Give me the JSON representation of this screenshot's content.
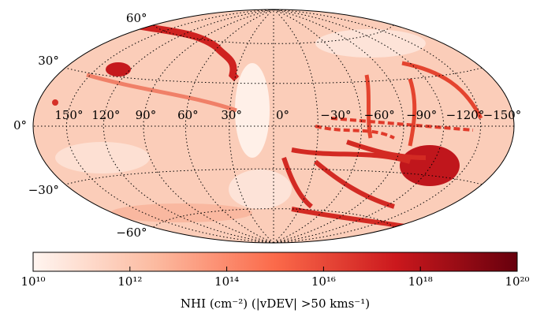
{
  "chart_data": {
    "type": "map",
    "projection": "hammer",
    "colorbar_label": "NHI (cm⁻²) (|vDEV| >50 kms⁻¹)",
    "clim": [
      10000000000.0,
      1e+20
    ],
    "log_scale": true,
    "colormap": [
      "#fff5f0",
      "#fcbba1",
      "#fb6a4a",
      "#cb181d",
      "#67000d"
    ],
    "cticks": [
      {
        "value": 10000000000.0,
        "label": "10¹⁰"
      },
      {
        "value": 1000000000000.0,
        "label": "10¹²"
      },
      {
        "value": 100000000000000.0,
        "label": "10¹⁴"
      },
      {
        "value": 1e+16,
        "label": "10¹⁶"
      },
      {
        "value": 1e+18,
        "label": "10¹⁸"
      },
      {
        "value": 1e+20,
        "label": "10²⁰"
      }
    ],
    "lonticks": [
      {
        "value": 150,
        "label": "150°"
      },
      {
        "value": 120,
        "label": "120°"
      },
      {
        "value": 90,
        "label": "90°"
      },
      {
        "value": 60,
        "label": "60°"
      },
      {
        "value": 30,
        "label": "30°"
      },
      {
        "value": 0,
        "label": "0°"
      },
      {
        "value": -30,
        "label": "−30°"
      },
      {
        "value": -60,
        "label": "−60°"
      },
      {
        "value": -90,
        "label": "−90°"
      },
      {
        "value": -120,
        "label": "−120°"
      },
      {
        "value": -150,
        "label": "−150°"
      }
    ],
    "latticks": [
      {
        "value": 60,
        "label": "60°"
      },
      {
        "value": 30,
        "label": "30°"
      },
      {
        "value": 0,
        "label": "0°"
      },
      {
        "value": -30,
        "label": "−30°"
      },
      {
        "value": -60,
        "label": "−60°"
      }
    ],
    "grid": true
  }
}
